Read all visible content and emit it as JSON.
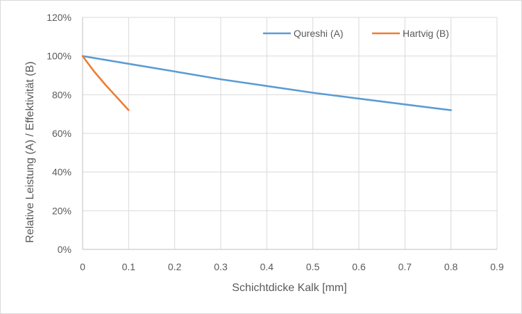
{
  "chart_data": {
    "type": "line",
    "title": "",
    "xlabel": "Schichtdicke Kalk [mm]",
    "ylabel": "Relative Leistung (A) / Effektivität (B)",
    "xlim": [
      0,
      0.9
    ],
    "ylim": [
      0,
      1.2
    ],
    "x_ticks": [
      0,
      0.1,
      0.2,
      0.3,
      0.4,
      0.5,
      0.6,
      0.7,
      0.8,
      0.9
    ],
    "x_tick_labels": [
      "0",
      "0.1",
      "0.2",
      "0.3",
      "0.4",
      "0.5",
      "0.6",
      "0.7",
      "0.8",
      "0.9"
    ],
    "y_ticks": [
      0,
      0.2,
      0.4,
      0.6,
      0.8,
      1.0,
      1.2
    ],
    "y_tick_labels": [
      "0%",
      "20%",
      "40%",
      "60%",
      "80%",
      "100%",
      "120%"
    ],
    "grid": true,
    "legend_position": "top-right",
    "series": [
      {
        "name": "Qureshi (A)",
        "color": "#5b9bd5",
        "x": [
          0,
          0.1,
          0.2,
          0.3,
          0.4,
          0.5,
          0.6,
          0.7,
          0.8
        ],
        "y": [
          1.0,
          0.96,
          0.92,
          0.88,
          0.845,
          0.81,
          0.78,
          0.75,
          0.72
        ]
      },
      {
        "name": "Hartvig (B)",
        "color": "#ed7d31",
        "x": [
          0,
          0.025,
          0.05,
          0.075,
          0.1
        ],
        "y": [
          1.0,
          0.92,
          0.85,
          0.785,
          0.72
        ]
      }
    ]
  }
}
